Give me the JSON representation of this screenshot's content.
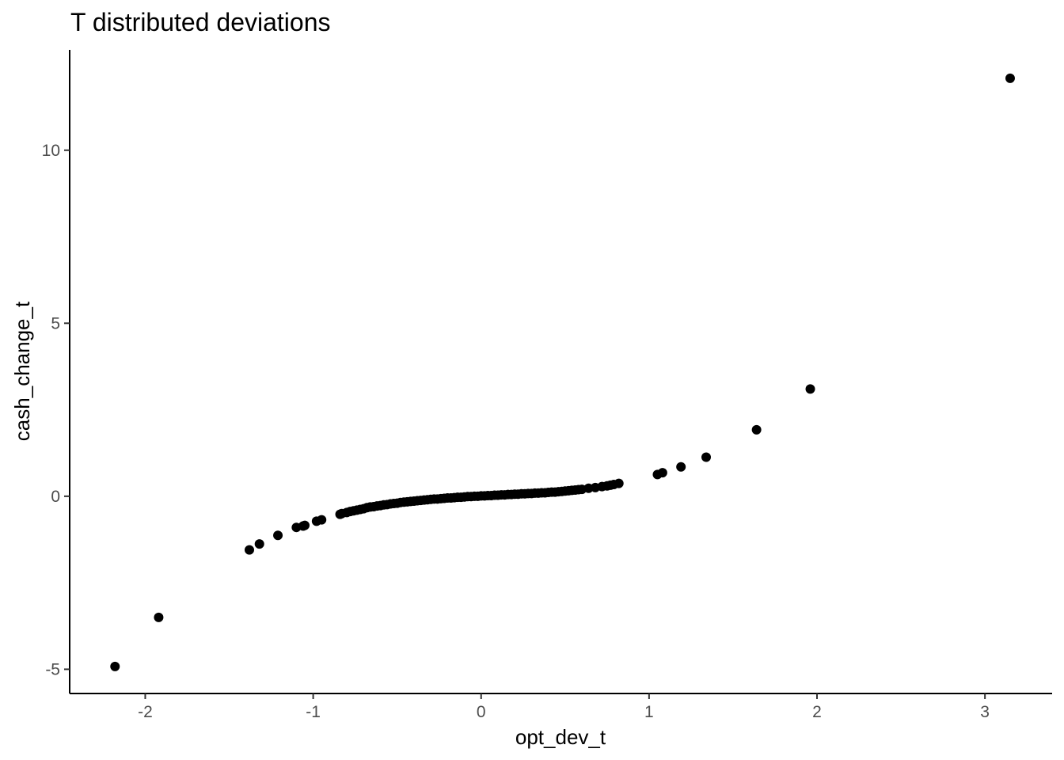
{
  "chart_data": {
    "type": "scatter",
    "title": "T distributed deviations",
    "xlabel": "opt_dev_t",
    "ylabel": "cash_change_t",
    "xlim": [
      -2.45,
      3.4
    ],
    "ylim": [
      -5.7,
      12.9
    ],
    "xticks": [
      -2,
      -1,
      0,
      1,
      2,
      3
    ],
    "yticks": [
      -5,
      0,
      5,
      10
    ],
    "grid": false,
    "point_color": "#000000",
    "points": [
      [
        -2.18,
        -4.92
      ],
      [
        -1.92,
        -3.5
      ],
      [
        -1.38,
        -1.55
      ],
      [
        -1.32,
        -1.38
      ],
      [
        -1.21,
        -1.13
      ],
      [
        -1.1,
        -0.9
      ],
      [
        -1.06,
        -0.86
      ],
      [
        -1.05,
        -0.84
      ],
      [
        -0.98,
        -0.72
      ],
      [
        -0.95,
        -0.68
      ],
      [
        -0.84,
        -0.52
      ],
      [
        -0.83,
        -0.5
      ],
      [
        -0.8,
        -0.47
      ],
      [
        -0.78,
        -0.44
      ],
      [
        -0.76,
        -0.42
      ],
      [
        -0.74,
        -0.4
      ],
      [
        -0.72,
        -0.38
      ],
      [
        -0.7,
        -0.36
      ],
      [
        -0.68,
        -0.33
      ],
      [
        -0.66,
        -0.31
      ],
      [
        -0.64,
        -0.3
      ],
      [
        -0.62,
        -0.28
      ],
      [
        -0.6,
        -0.27
      ],
      [
        -0.58,
        -0.25
      ],
      [
        -0.56,
        -0.24
      ],
      [
        -0.54,
        -0.22
      ],
      [
        -0.52,
        -0.21
      ],
      [
        -0.5,
        -0.2
      ],
      [
        -0.48,
        -0.18
      ],
      [
        -0.46,
        -0.17
      ],
      [
        -0.44,
        -0.16
      ],
      [
        -0.42,
        -0.15
      ],
      [
        -0.4,
        -0.14
      ],
      [
        -0.38,
        -0.13
      ],
      [
        -0.36,
        -0.12
      ],
      [
        -0.34,
        -0.11
      ],
      [
        -0.32,
        -0.1
      ],
      [
        -0.3,
        -0.09
      ],
      [
        -0.28,
        -0.08
      ],
      [
        -0.26,
        -0.08
      ],
      [
        -0.24,
        -0.07
      ],
      [
        -0.22,
        -0.06
      ],
      [
        -0.2,
        -0.05
      ],
      [
        -0.18,
        -0.05
      ],
      [
        -0.16,
        -0.04
      ],
      [
        -0.14,
        -0.03
      ],
      [
        -0.12,
        -0.03
      ],
      [
        -0.1,
        -0.02
      ],
      [
        -0.08,
        -0.01
      ],
      [
        -0.06,
        -0.01
      ],
      [
        -0.04,
        0.0
      ],
      [
        -0.02,
        0.0
      ],
      [
        0.0,
        0.01
      ],
      [
        0.02,
        0.01
      ],
      [
        0.04,
        0.02
      ],
      [
        0.06,
        0.02
      ],
      [
        0.08,
        0.03
      ],
      [
        0.1,
        0.03
      ],
      [
        0.12,
        0.04
      ],
      [
        0.14,
        0.04
      ],
      [
        0.16,
        0.05
      ],
      [
        0.18,
        0.05
      ],
      [
        0.2,
        0.06
      ],
      [
        0.22,
        0.06
      ],
      [
        0.24,
        0.07
      ],
      [
        0.26,
        0.07
      ],
      [
        0.28,
        0.08
      ],
      [
        0.3,
        0.08
      ],
      [
        0.32,
        0.09
      ],
      [
        0.34,
        0.09
      ],
      [
        0.36,
        0.1
      ],
      [
        0.38,
        0.1
      ],
      [
        0.4,
        0.11
      ],
      [
        0.42,
        0.12
      ],
      [
        0.44,
        0.12
      ],
      [
        0.46,
        0.13
      ],
      [
        0.48,
        0.14
      ],
      [
        0.5,
        0.15
      ],
      [
        0.52,
        0.16
      ],
      [
        0.54,
        0.17
      ],
      [
        0.56,
        0.18
      ],
      [
        0.58,
        0.19
      ],
      [
        0.6,
        0.2
      ],
      [
        0.64,
        0.23
      ],
      [
        0.68,
        0.25
      ],
      [
        0.72,
        0.28
      ],
      [
        0.75,
        0.3
      ],
      [
        0.77,
        0.32
      ],
      [
        0.79,
        0.34
      ],
      [
        0.82,
        0.37
      ],
      [
        1.05,
        0.63
      ],
      [
        1.08,
        0.68
      ],
      [
        1.19,
        0.85
      ],
      [
        1.34,
        1.13
      ],
      [
        1.64,
        1.92
      ],
      [
        1.96,
        3.1
      ],
      [
        3.15,
        12.08
      ]
    ]
  }
}
